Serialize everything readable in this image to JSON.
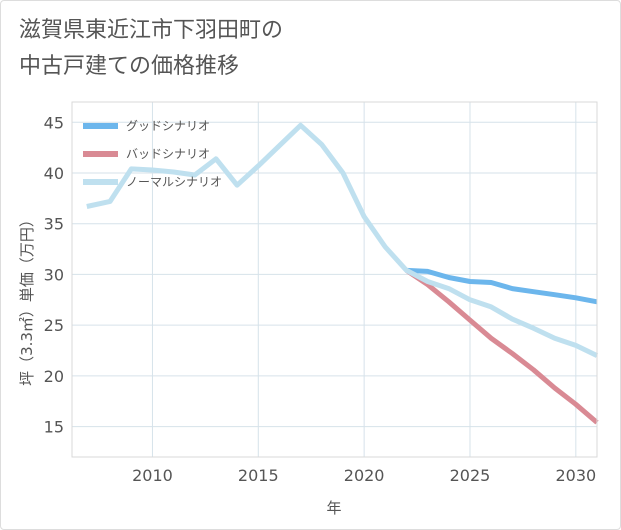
{
  "title_lines": [
    "滋賀県東近江市下羽田町の",
    "中古戸建ての価格推移"
  ],
  "chart_data": {
    "type": "line",
    "title": "滋賀県東近江市下羽田町の中古戸建ての価格推移",
    "xlabel": "年",
    "ylabel": "坪（3.3㎡）単価（万円）",
    "xlim": [
      2006.2,
      2031
    ],
    "ylim": [
      12,
      47
    ],
    "xticks": [
      2010,
      2015,
      2020,
      2025,
      2030
    ],
    "yticks": [
      15,
      20,
      25,
      30,
      35,
      40,
      45
    ],
    "grid": true,
    "legend_position": "top-left",
    "series": [
      {
        "name": "グッドシナリオ",
        "color": "#6cb6ec",
        "points": [
          [
            2022,
            30.4
          ],
          [
            2023,
            30.3
          ],
          [
            2024,
            29.7
          ],
          [
            2025,
            29.3
          ],
          [
            2026,
            29.2
          ],
          [
            2027,
            28.6
          ],
          [
            2028,
            28.3
          ],
          [
            2029,
            28.0
          ],
          [
            2030,
            27.7
          ],
          [
            2031,
            27.3
          ]
        ]
      },
      {
        "name": "バッドシナリオ",
        "color": "#d98a94",
        "points": [
          [
            2022,
            30.4
          ],
          [
            2023,
            29.0
          ],
          [
            2024,
            27.3
          ],
          [
            2025,
            25.5
          ],
          [
            2026,
            23.7
          ],
          [
            2027,
            22.2
          ],
          [
            2028,
            20.6
          ],
          [
            2029,
            18.8
          ],
          [
            2030,
            17.2
          ],
          [
            2031,
            15.4
          ]
        ]
      },
      {
        "name": "ノーマルシナリオ",
        "color": "#bfe0ef",
        "points": [
          [
            2006.9,
            36.7
          ],
          [
            2008,
            37.2
          ],
          [
            2009,
            40.4
          ],
          [
            2010,
            40.3
          ],
          [
            2011,
            40.1
          ],
          [
            2012,
            39.8
          ],
          [
            2013,
            41.4
          ],
          [
            2014,
            38.8
          ],
          [
            2015,
            40.7
          ],
          [
            2016,
            42.7
          ],
          [
            2017,
            44.7
          ],
          [
            2018,
            42.8
          ],
          [
            2019,
            40.0
          ],
          [
            2020,
            35.7
          ],
          [
            2021,
            32.7
          ],
          [
            2022,
            30.4
          ],
          [
            2023,
            29.3
          ],
          [
            2024,
            28.6
          ],
          [
            2025,
            27.5
          ],
          [
            2026,
            26.8
          ],
          [
            2027,
            25.6
          ],
          [
            2028,
            24.7
          ],
          [
            2029,
            23.7
          ],
          [
            2030,
            23.0
          ],
          [
            2031,
            22.0
          ]
        ]
      }
    ]
  }
}
